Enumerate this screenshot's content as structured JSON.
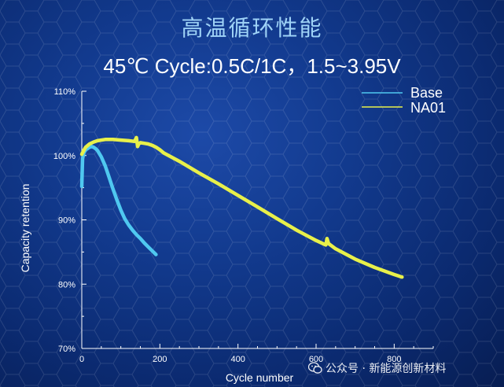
{
  "chart_data": {
    "type": "line",
    "title": "高温循环性能",
    "subtitle": "45℃ Cycle:0.5C/1C，1.5~3.95V",
    "xlabel": "Cycle number",
    "ylabel": "Capacity retention",
    "xlim": [
      0,
      900
    ],
    "ylim": [
      70,
      110
    ],
    "xticks": [
      0,
      200,
      400,
      600,
      800
    ],
    "yticks": [
      70,
      80,
      90,
      100,
      110
    ],
    "ytick_labels": [
      "70%",
      "80%",
      "90%",
      "100%",
      "110%"
    ],
    "grid": false,
    "legend_position": "top-right",
    "series": [
      {
        "name": "Base",
        "color": "#4fc8f0",
        "x": [
          0,
          2,
          5,
          10,
          15,
          20,
          25,
          30,
          35,
          40,
          50,
          60,
          70,
          80,
          90,
          100,
          110,
          120,
          130,
          140,
          150,
          160,
          170,
          180,
          190
        ],
        "y": [
          95.2,
          99.5,
          100.4,
          100.9,
          101.1,
          101.3,
          101.4,
          101.3,
          101.1,
          100.8,
          99.8,
          98.4,
          96.6,
          94.8,
          93.1,
          91.5,
          90.2,
          89.2,
          88.4,
          87.7,
          87.1,
          86.4,
          85.8,
          85.2,
          84.6
        ]
      },
      {
        "name": "NA01",
        "color": "#e8f04a",
        "x": [
          0,
          5,
          10,
          20,
          30,
          40,
          60,
          80,
          100,
          120,
          135,
          140,
          143,
          146,
          150,
          160,
          170,
          180,
          190,
          200,
          210,
          250,
          300,
          350,
          400,
          450,
          500,
          550,
          600,
          625,
          628,
          632,
          650,
          700,
          750,
          800,
          820
        ],
        "y": [
          100.2,
          100.8,
          101.3,
          101.8,
          102.1,
          102.3,
          102.5,
          102.5,
          102.4,
          102.3,
          102.2,
          102.8,
          101.4,
          101.8,
          102.0,
          101.9,
          101.8,
          101.6,
          101.3,
          100.9,
          100.4,
          99.1,
          97.3,
          95.6,
          93.8,
          92.0,
          90.2,
          88.4,
          86.8,
          86.1,
          87.1,
          86.3,
          85.5,
          83.9,
          82.6,
          81.5,
          81.1
        ]
      }
    ]
  },
  "watermark": {
    "text": "公众号 · 新能源创新材料",
    "icon": "wechat-icon"
  }
}
